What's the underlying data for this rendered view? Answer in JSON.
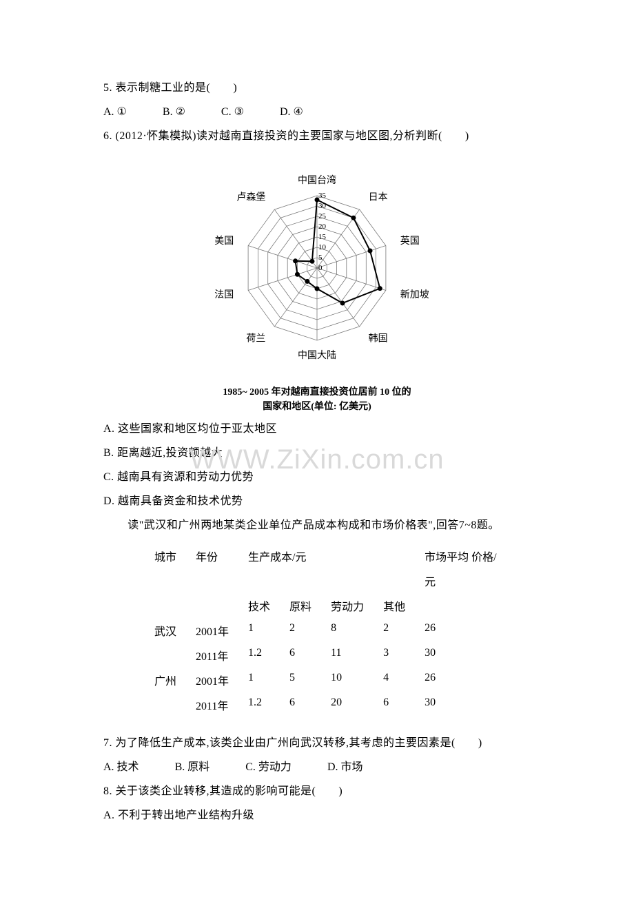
{
  "q5": {
    "stem": "5. 表示制糖工业的是(　　)",
    "opts": {
      "A": "A. ①",
      "B": "B. ②",
      "C": "C. ③",
      "D": "D. ④"
    }
  },
  "q6": {
    "stem": "6. (2012·怀集模拟)读对越南直接投资的主要国家与地区图,分析判断(　　)",
    "chart": {
      "type": "radar",
      "caption_l1": "1985~ 2005 年对越南直接投资位居前 10 位的",
      "caption_l2": "国家和地区(单位: 亿美元)",
      "axes": [
        "中国台湾",
        "日本",
        "英国",
        "新加坡",
        "韩国",
        "中国大陆",
        "荷兰",
        "法国",
        "美国",
        "卢森堡"
      ],
      "rings": [
        0,
        5,
        10,
        15,
        20,
        25,
        30,
        35
      ],
      "max": 35,
      "values": [
        33,
        30,
        27,
        32,
        21,
        10,
        8,
        10,
        11,
        4
      ],
      "line_color": "#000000",
      "grid_color": "#7a7a7a",
      "marker_fill": "#000000",
      "background_color": "#ffffff",
      "label_fontsize": 14,
      "tick_fontsize": 11,
      "caption_fontsize": 14
    },
    "opts": {
      "A": "A. 这些国家和地区均位于亚太地区",
      "B": "B. 距离越近,投资额越大",
      "C": "C. 越南具有资源和劳动力优势",
      "D": "D. 越南具备资金和技术优势"
    }
  },
  "watermark": "WWW.ZiXin.com.cn",
  "q78_intro": "读\"武汉和广州两地某类企业单位产品成本构成和市场价格表\",回答7~8题。",
  "table": {
    "head": {
      "city": "城市",
      "year": "年份",
      "cost": "生产成本/元",
      "price_l1": "市场平均 价格/",
      "price_l2": "元",
      "sub": {
        "tech": "技术",
        "mat": "原料",
        "labor": "劳动力",
        "other": "其他"
      }
    },
    "rows": [
      {
        "city": "武汉",
        "year": "2001年",
        "tech": "1",
        "mat": "2",
        "labor": "8",
        "other": "2",
        "price": "26"
      },
      {
        "city": "",
        "year": "2011年",
        "tech": "1.2",
        "mat": "6",
        "labor": "11",
        "other": "3",
        "price": "30"
      },
      {
        "city": "广州",
        "year": "2001年",
        "tech": "1",
        "mat": "5",
        "labor": "10",
        "other": "4",
        "price": "26"
      },
      {
        "city": "",
        "year": "2011年",
        "tech": "1.2",
        "mat": "6",
        "labor": "20",
        "other": "6",
        "price": "30"
      }
    ]
  },
  "q7": {
    "stem": "7. 为了降低生产成本,该类企业由广州向武汉转移,其考虑的主要因素是(　　)",
    "opts": {
      "A": "A. 技术",
      "B": "B. 原料",
      "C": "C. 劳动力",
      "D": "D. 市场"
    }
  },
  "q8": {
    "stem": "8. 关于该类企业转移,其造成的影响可能是(　　)",
    "optA": "A. 不利于转出地产业结构升级"
  }
}
